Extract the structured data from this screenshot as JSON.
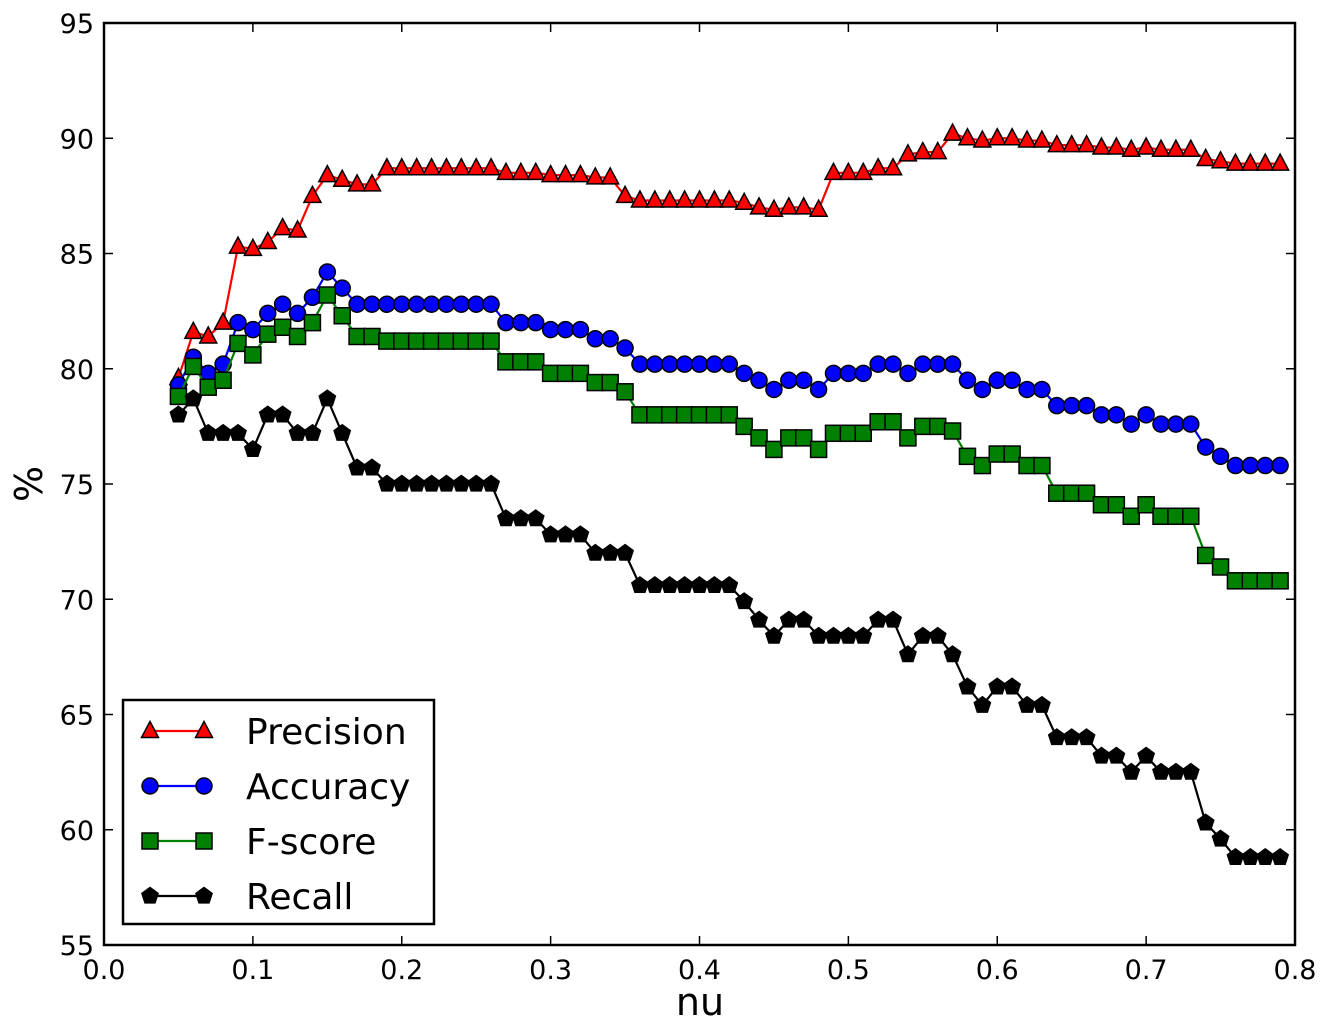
{
  "chart_data": {
    "type": "line",
    "title": "",
    "xlabel": "nu",
    "ylabel": "%",
    "xlim": [
      0.0,
      0.8
    ],
    "ylim": [
      55,
      95
    ],
    "x_ticks": [
      "0.0",
      "0.1",
      "0.2",
      "0.3",
      "0.4",
      "0.5",
      "0.6",
      "0.7",
      "0.8"
    ],
    "y_ticks": [
      "55",
      "60",
      "65",
      "70",
      "75",
      "80",
      "85",
      "90",
      "95"
    ],
    "grid": false,
    "legend_position": "lower-left",
    "x": [
      0.05,
      0.06,
      0.07,
      0.08,
      0.09,
      0.1,
      0.11,
      0.12,
      0.13,
      0.14,
      0.15,
      0.16,
      0.17,
      0.18,
      0.19,
      0.2,
      0.21,
      0.22,
      0.23,
      0.24,
      0.25,
      0.26,
      0.27,
      0.28,
      0.29,
      0.3,
      0.31,
      0.32,
      0.33,
      0.34,
      0.35,
      0.36,
      0.37,
      0.38,
      0.39,
      0.4,
      0.41,
      0.42,
      0.43,
      0.44,
      0.45,
      0.46,
      0.47,
      0.48,
      0.49,
      0.5,
      0.51,
      0.52,
      0.53,
      0.54,
      0.55,
      0.56,
      0.57,
      0.58,
      0.59,
      0.6,
      0.61,
      0.62,
      0.63,
      0.64,
      0.65,
      0.66,
      0.67,
      0.68,
      0.69,
      0.7,
      0.71,
      0.72,
      0.73,
      0.74,
      0.75,
      0.76,
      0.77,
      0.78,
      0.79
    ],
    "series": [
      {
        "name": "Precision",
        "color": "#ff0000",
        "marker": "triangle",
        "values": [
          79.6,
          81.6,
          81.4,
          82.0,
          85.3,
          85.2,
          85.5,
          86.1,
          86.0,
          87.5,
          88.4,
          88.2,
          88.0,
          88.0,
          88.7,
          88.7,
          88.7,
          88.7,
          88.7,
          88.7,
          88.7,
          88.7,
          88.5,
          88.5,
          88.5,
          88.4,
          88.4,
          88.4,
          88.3,
          88.3,
          87.5,
          87.3,
          87.3,
          87.3,
          87.3,
          87.3,
          87.3,
          87.3,
          87.2,
          87.0,
          86.9,
          87.0,
          87.0,
          86.9,
          88.5,
          88.5,
          88.5,
          88.7,
          88.7,
          89.3,
          89.4,
          89.4,
          90.2,
          90.0,
          89.9,
          90.0,
          90.0,
          89.9,
          89.9,
          89.7,
          89.7,
          89.7,
          89.6,
          89.6,
          89.5,
          89.6,
          89.5,
          89.5,
          89.5,
          89.1,
          89.0,
          88.9,
          88.9,
          88.9,
          88.9
        ]
      },
      {
        "name": "Accuracy",
        "color": "#0000ff",
        "marker": "circle",
        "values": [
          79.3,
          80.5,
          79.8,
          80.2,
          82.0,
          81.7,
          82.4,
          82.8,
          82.4,
          83.1,
          84.2,
          83.5,
          82.8,
          82.8,
          82.8,
          82.8,
          82.8,
          82.8,
          82.8,
          82.8,
          82.8,
          82.8,
          82.0,
          82.0,
          82.0,
          81.7,
          81.7,
          81.7,
          81.3,
          81.3,
          80.9,
          80.2,
          80.2,
          80.2,
          80.2,
          80.2,
          80.2,
          80.2,
          79.8,
          79.5,
          79.1,
          79.5,
          79.5,
          79.1,
          79.8,
          79.8,
          79.8,
          80.2,
          80.2,
          79.8,
          80.2,
          80.2,
          80.2,
          79.5,
          79.1,
          79.5,
          79.5,
          79.1,
          79.1,
          78.4,
          78.4,
          78.4,
          78.0,
          78.0,
          77.6,
          78.0,
          77.6,
          77.6,
          77.6,
          76.6,
          76.2,
          75.8,
          75.8,
          75.8,
          75.8
        ]
      },
      {
        "name": "F-score",
        "color": "#008000",
        "marker": "square",
        "values": [
          78.8,
          80.1,
          79.2,
          79.5,
          81.1,
          80.6,
          81.5,
          81.8,
          81.4,
          82.0,
          83.2,
          82.3,
          81.4,
          81.4,
          81.2,
          81.2,
          81.2,
          81.2,
          81.2,
          81.2,
          81.2,
          81.2,
          80.3,
          80.3,
          80.3,
          79.8,
          79.8,
          79.8,
          79.4,
          79.4,
          79.0,
          78.0,
          78.0,
          78.0,
          78.0,
          78.0,
          78.0,
          78.0,
          77.5,
          77.0,
          76.5,
          77.0,
          77.0,
          76.5,
          77.2,
          77.2,
          77.2,
          77.7,
          77.7,
          77.0,
          77.5,
          77.5,
          77.3,
          76.2,
          75.8,
          76.3,
          76.3,
          75.8,
          75.8,
          74.6,
          74.6,
          74.6,
          74.1,
          74.1,
          73.6,
          74.1,
          73.6,
          73.6,
          73.6,
          71.9,
          71.4,
          70.8,
          70.8,
          70.8,
          70.8
        ]
      },
      {
        "name": "Recall",
        "color": "#000000",
        "marker": "pentagon",
        "values": [
          78.0,
          78.7,
          77.2,
          77.2,
          77.2,
          76.5,
          78.0,
          78.0,
          77.2,
          77.2,
          78.7,
          77.2,
          75.7,
          75.7,
          75.0,
          75.0,
          75.0,
          75.0,
          75.0,
          75.0,
          75.0,
          75.0,
          73.5,
          73.5,
          73.5,
          72.8,
          72.8,
          72.8,
          72.0,
          72.0,
          72.0,
          70.6,
          70.6,
          70.6,
          70.6,
          70.6,
          70.6,
          70.6,
          69.9,
          69.1,
          68.4,
          69.1,
          69.1,
          68.4,
          68.4,
          68.4,
          68.4,
          69.1,
          69.1,
          67.6,
          68.4,
          68.4,
          67.6,
          66.2,
          65.4,
          66.2,
          66.2,
          65.4,
          65.4,
          64.0,
          64.0,
          64.0,
          63.2,
          63.2,
          62.5,
          63.2,
          62.5,
          62.5,
          62.5,
          60.3,
          59.6,
          58.8,
          58.8,
          58.8,
          58.8
        ]
      }
    ]
  }
}
